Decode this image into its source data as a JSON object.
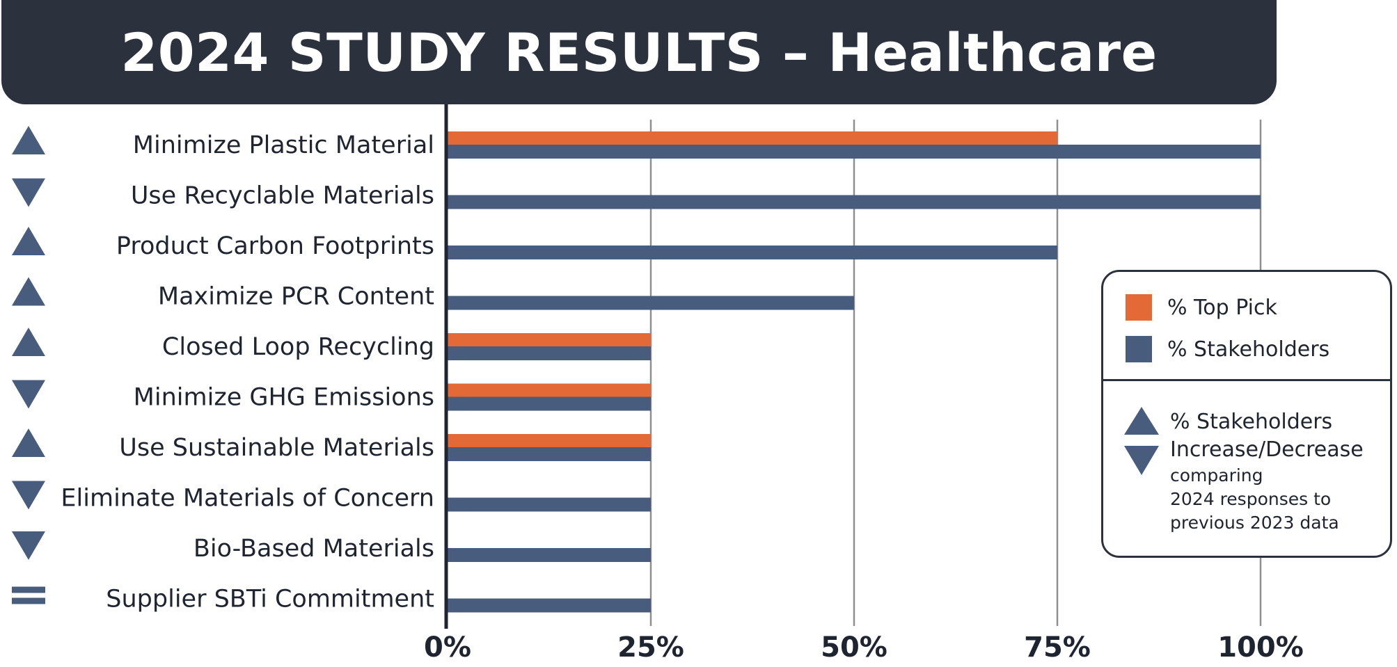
{
  "title": "2024 STUDY RESULTS – Healthcare",
  "colors": {
    "top_pick": "#e36a37",
    "stakeholders": "#485c7e",
    "banner": "#2b323e",
    "grid": "#8f8f8f"
  },
  "legend": {
    "top_pick": "% Top Pick",
    "stakeholders": "% Stakeholders",
    "trend_title_1": "% Stakeholders",
    "trend_title_2": "Increase/Decrease",
    "trend_note_1": "comparing",
    "trend_note_2": "2024 responses to",
    "trend_note_3": "previous 2023 data"
  },
  "chart_data": {
    "type": "bar",
    "orientation": "horizontal",
    "categories": [
      "Minimize Plastic Material",
      "Use Recyclable Materials",
      "Product Carbon Footprints",
      "Maximize PCR Content",
      "Closed Loop Recycling",
      "Minimize GHG Emissions",
      "Use Sustainable Materials",
      "Eliminate Materials of Concern",
      "Bio-Based Materials",
      "Supplier SBTi Commitment"
    ],
    "series": [
      {
        "name": "% Top Pick",
        "color": "#e36a37",
        "values": [
          75,
          0,
          0,
          0,
          25,
          25,
          25,
          0,
          0,
          0
        ]
      },
      {
        "name": "% Stakeholders",
        "color": "#485c7e",
        "values": [
          100,
          100,
          75,
          50,
          25,
          25,
          25,
          25,
          25,
          25
        ]
      }
    ],
    "trends": [
      "up",
      "down",
      "up",
      "up",
      "up",
      "down",
      "up",
      "down",
      "down",
      "equal"
    ],
    "xticks": [
      "0%",
      "25%",
      "50%",
      "75%",
      "100%"
    ],
    "xlim": [
      0,
      100
    ],
    "grid": true,
    "legend_position": "right"
  }
}
